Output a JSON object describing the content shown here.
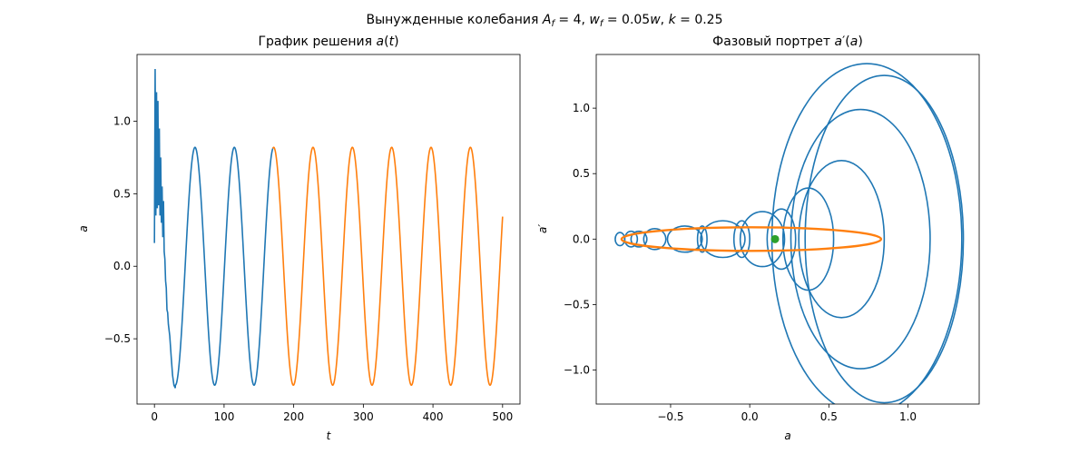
{
  "figure": {
    "suptitle": "Вынужденные колебания A_f = 4, w_f = 0.05w, k = 0.25"
  },
  "chart_data": [
    {
      "type": "line",
      "title": "График решения a(t)",
      "xlabel": "t",
      "ylabel": "a",
      "xlim": [
        -25,
        525
      ],
      "ylim": [
        -0.95,
        1.46
      ],
      "xticks": [
        0,
        100,
        200,
        300,
        400,
        500
      ],
      "xtick_labels": [
        "0",
        "100",
        "200",
        "300",
        "400",
        "500"
      ],
      "yticks": [
        -0.5,
        0.0,
        0.5,
        1.0
      ],
      "ytick_labels": [
        "−0.5",
        "0.0",
        "0.5",
        "1.0"
      ],
      "grid": false,
      "series": [
        {
          "color": "#1f77b4",
          "description_transient": "noisy transient t in [0,30] then damped-free oscillation, period ~56.5, amplitude ~0.82, up to t~170",
          "points": [
            [
              0,
              0.16
            ],
            [
              1,
              1.36
            ],
            [
              2,
              0.35
            ],
            [
              3,
              1.2
            ],
            [
              4,
              0.4
            ],
            [
              5,
              1.14
            ],
            [
              6,
              0.42
            ],
            [
              7,
              0.95
            ],
            [
              8,
              0.35
            ],
            [
              9,
              0.75
            ],
            [
              10,
              0.3
            ],
            [
              11,
              0.55
            ],
            [
              12,
              0.2
            ],
            [
              13,
              0.45
            ],
            [
              14,
              0.1
            ],
            [
              15,
              0.05
            ],
            [
              16,
              -0.1
            ],
            [
              17,
              -0.15
            ],
            [
              18,
              -0.3
            ],
            [
              19,
              -0.32
            ],
            [
              20,
              -0.4
            ],
            [
              22,
              -0.48
            ],
            [
              24,
              -0.62
            ],
            [
              26,
              -0.75
            ],
            [
              28,
              -0.82
            ],
            [
              30,
              -0.84
            ]
          ],
          "sine": {
            "t_start": 30,
            "t_end": 170,
            "amplitude": 0.82,
            "period": 56.5,
            "phase_t_min": 30.0,
            "offset": 0.0
          }
        },
        {
          "color": "#ff7f0e",
          "sine": {
            "t_start": 170,
            "t_end": 500,
            "amplitude": 0.82,
            "period": 56.5,
            "phase_t_min": 30.0,
            "offset": 0.0
          }
        }
      ]
    },
    {
      "type": "line",
      "title": "Фазовый портрет a′(a)",
      "xlabel": "a",
      "ylabel": "a′",
      "xlim": [
        -0.97,
        1.45
      ],
      "ylim": [
        -1.26,
        1.41
      ],
      "xticks": [
        -0.5,
        0.0,
        0.5,
        1.0
      ],
      "xtick_labels": [
        "−0.5",
        "0.0",
        "0.5",
        "1.0"
      ],
      "yticks": [
        -1.0,
        -0.5,
        0.0,
        0.5,
        1.0
      ],
      "ytick_labels": [
        "−1.0",
        "−0.5",
        "0.0",
        "0.5",
        "1.0"
      ],
      "grid": false,
      "series": [
        {
          "color": "#1f77b4",
          "loops": [
            {
              "cx": 0.85,
              "cy": 0.0,
              "rx": 0.5,
              "ry": 1.25
            },
            {
              "cx": 0.74,
              "cy": 0.0,
              "rx": 0.6,
              "ry": 1.34
            },
            {
              "cx": 0.7,
              "cy": 0.0,
              "rx": 0.44,
              "ry": 0.99
            },
            {
              "cx": 0.58,
              "cy": 0.0,
              "rx": 0.27,
              "ry": 0.6
            },
            {
              "cx": 0.37,
              "cy": 0.0,
              "rx": 0.16,
              "ry": 0.39
            },
            {
              "cx": 0.2,
              "cy": 0.0,
              "rx": 0.09,
              "ry": 0.23
            },
            {
              "cx": 0.08,
              "cy": 0.0,
              "rx": 0.14,
              "ry": 0.21
            },
            {
              "cx": -0.17,
              "cy": 0.0,
              "rx": 0.14,
              "ry": 0.14
            },
            {
              "cx": -0.41,
              "cy": 0.0,
              "rx": 0.11,
              "ry": 0.1
            },
            {
              "cx": -0.6,
              "cy": 0.0,
              "rx": 0.07,
              "ry": 0.08
            },
            {
              "cx": -0.75,
              "cy": 0.0,
              "rx": 0.04,
              "ry": 0.06
            },
            {
              "cx": -0.82,
              "cy": 0.0,
              "rx": 0.03,
              "ry": 0.05
            },
            {
              "cx": -0.3,
              "cy": 0.0,
              "rx": 0.03,
              "ry": 0.1
            },
            {
              "cx": -0.05,
              "cy": 0.0,
              "rx": 0.05,
              "ry": 0.14
            },
            {
              "cx": -0.7,
              "cy": 0.0,
              "rx": 0.05,
              "ry": 0.06
            }
          ]
        },
        {
          "color": "#ff7f0e",
          "ellipse": {
            "cx": 0.01,
            "cy": 0.0,
            "rx": 0.82,
            "ry": 0.09
          }
        },
        {
          "color": "#2ca02c",
          "marker_point": [
            0.16,
            0.0
          ]
        }
      ]
    }
  ]
}
